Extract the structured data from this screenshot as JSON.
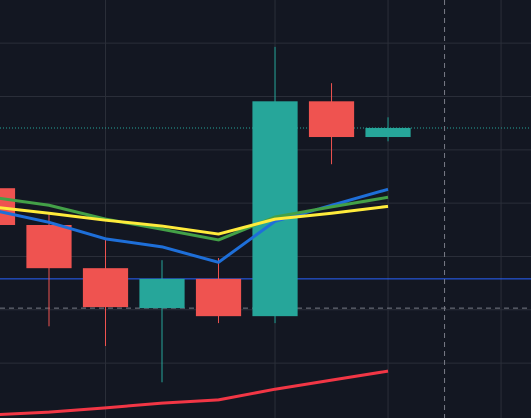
{
  "chart_data": {
    "type": "candlestick",
    "background": "#131722",
    "grid": true,
    "grid_color": "#2a2e39",
    "x": [
      0,
      1,
      2,
      3,
      4,
      5,
      6,
      7
    ],
    "xlim": [
      0.133,
      9.53
    ],
    "xticks": [
      2,
      5,
      7,
      9
    ],
    "ylim": [
      -0.3,
      78.1
    ],
    "yticks": [
      10,
      20,
      30,
      40,
      50,
      60,
      70
    ],
    "up_color": "#26a69a",
    "down_color": "#ef5350",
    "open": [
      42.8,
      35.9,
      27.8,
      20.3,
      25.8,
      18.8,
      59.1,
      52.4
    ],
    "high": [
      42.8,
      38.3,
      33.1,
      29.3,
      29.7,
      69.3,
      62.5,
      56.1
    ],
    "low": [
      35.9,
      16.9,
      13.2,
      6.4,
      17.5,
      17.5,
      47.3,
      51.6
    ],
    "close": [
      35.9,
      27.8,
      20.5,
      25.8,
      18.8,
      59.1,
      52.4,
      54.1
    ],
    "series": [
      {
        "color": "#1e6fd9",
        "values": [
          38.7,
          36.4,
          33.3,
          31.8,
          28.9,
          36.6,
          39.6,
          42.6
        ]
      },
      {
        "color": "#43a047",
        "values": [
          41.1,
          39.6,
          37.0,
          35.1,
          33.1,
          37.4,
          39.3,
          41.1
        ]
      },
      {
        "color": "#ffeb3b",
        "values": [
          39.3,
          38.1,
          36.8,
          35.7,
          34.2,
          37.0,
          38.1,
          39.4
        ]
      },
      {
        "color": "#f23645",
        "values": [
          0.3,
          0.8,
          1.6,
          2.5,
          3.1,
          5.1,
          6.8,
          8.5
        ]
      }
    ],
    "reference_lines": [
      {
        "value": 54.1,
        "color": "#26a69a",
        "style": "dotted"
      },
      {
        "value": 25.8,
        "color": "#2962ff",
        "style": "solid"
      }
    ],
    "crosshair": {
      "x": 8,
      "y": 20.3,
      "color": "#787b86"
    }
  }
}
